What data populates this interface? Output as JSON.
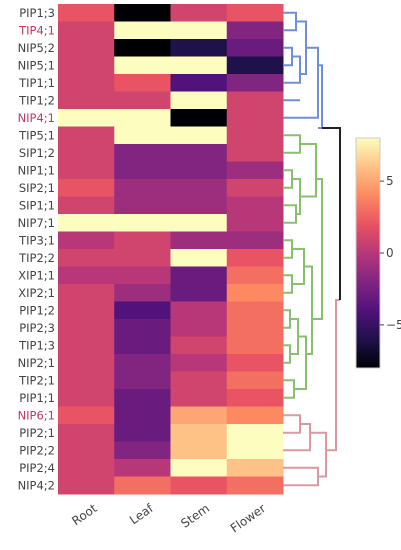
{
  "chart_data": {
    "type": "heatmap",
    "title": "",
    "xlabel": "",
    "ylabel": "",
    "colorscale": "magma",
    "zlim": [
      -8,
      8
    ],
    "colorbar_ticks": [
      5,
      0,
      -5
    ],
    "colorbar_tick_labels": [
      "5",
      "0",
      "−5"
    ],
    "columns": [
      "Root",
      "Leaf",
      "Stem",
      "Flower"
    ],
    "rows": [
      "PIP1;3",
      "TIP4;1",
      "NIP5;2",
      "NIP5;1",
      "TIP1;1",
      "TIP1;2",
      "NIP4;1",
      "TIP5;1",
      "SIP1;2",
      "NIP1;1",
      "SIP2;1",
      "SIP1;1",
      "NIP7;1",
      "TIP3;1",
      "TIP2;2",
      "XIP1;1",
      "XIP2;1",
      "PIP1;2",
      "PIP2;3",
      "TIP1;3",
      "NIP2;1",
      "TIP2;1",
      "PIP1;1",
      "NIP6;1",
      "PIP2;1",
      "PIP2;2",
      "PIP2;4",
      "NIP4;2"
    ],
    "row_label_colors": [
      "#444444",
      "#c0396b",
      "#444444",
      "#444444",
      "#444444",
      "#444444",
      "#c0396b",
      "#444444",
      "#444444",
      "#444444",
      "#444444",
      "#444444",
      "#444444",
      "#444444",
      "#444444",
      "#444444",
      "#444444",
      "#444444",
      "#444444",
      "#444444",
      "#444444",
      "#444444",
      "#444444",
      "#c0396b",
      "#444444",
      "#444444",
      "#444444",
      "#444444"
    ],
    "values": [
      [
        2,
        -8,
        1,
        2
      ],
      [
        1,
        8,
        8,
        -2
      ],
      [
        1,
        -8,
        -6,
        -3
      ],
      [
        1,
        8,
        8,
        -6
      ],
      [
        1,
        2,
        -4,
        -2
      ],
      [
        1,
        1,
        8,
        1
      ],
      [
        8,
        8,
        -8,
        1
      ],
      [
        1,
        8,
        8,
        1
      ],
      [
        1,
        -2,
        -2,
        1
      ],
      [
        1,
        -2,
        -2,
        -1
      ],
      [
        2,
        -1,
        -1,
        1
      ],
      [
        1,
        -1,
        -1,
        0
      ],
      [
        8,
        8,
        8,
        0
      ],
      [
        0,
        1,
        -1,
        -1
      ],
      [
        1,
        1,
        8,
        2
      ],
      [
        0,
        0,
        -3,
        3
      ],
      [
        1,
        -1,
        -3,
        4
      ],
      [
        1,
        -4,
        0,
        3
      ],
      [
        1,
        -3,
        0,
        3
      ],
      [
        1,
        -3,
        1,
        3
      ],
      [
        1,
        -2,
        0,
        2
      ],
      [
        1,
        -2,
        1,
        3
      ],
      [
        1,
        -3,
        1,
        2
      ],
      [
        2,
        -3,
        5,
        4
      ],
      [
        1,
        -3,
        6,
        8
      ],
      [
        1,
        -2,
        6,
        8
      ],
      [
        1,
        0,
        8,
        6
      ],
      [
        1,
        3,
        2,
        3
      ]
    ]
  }
}
